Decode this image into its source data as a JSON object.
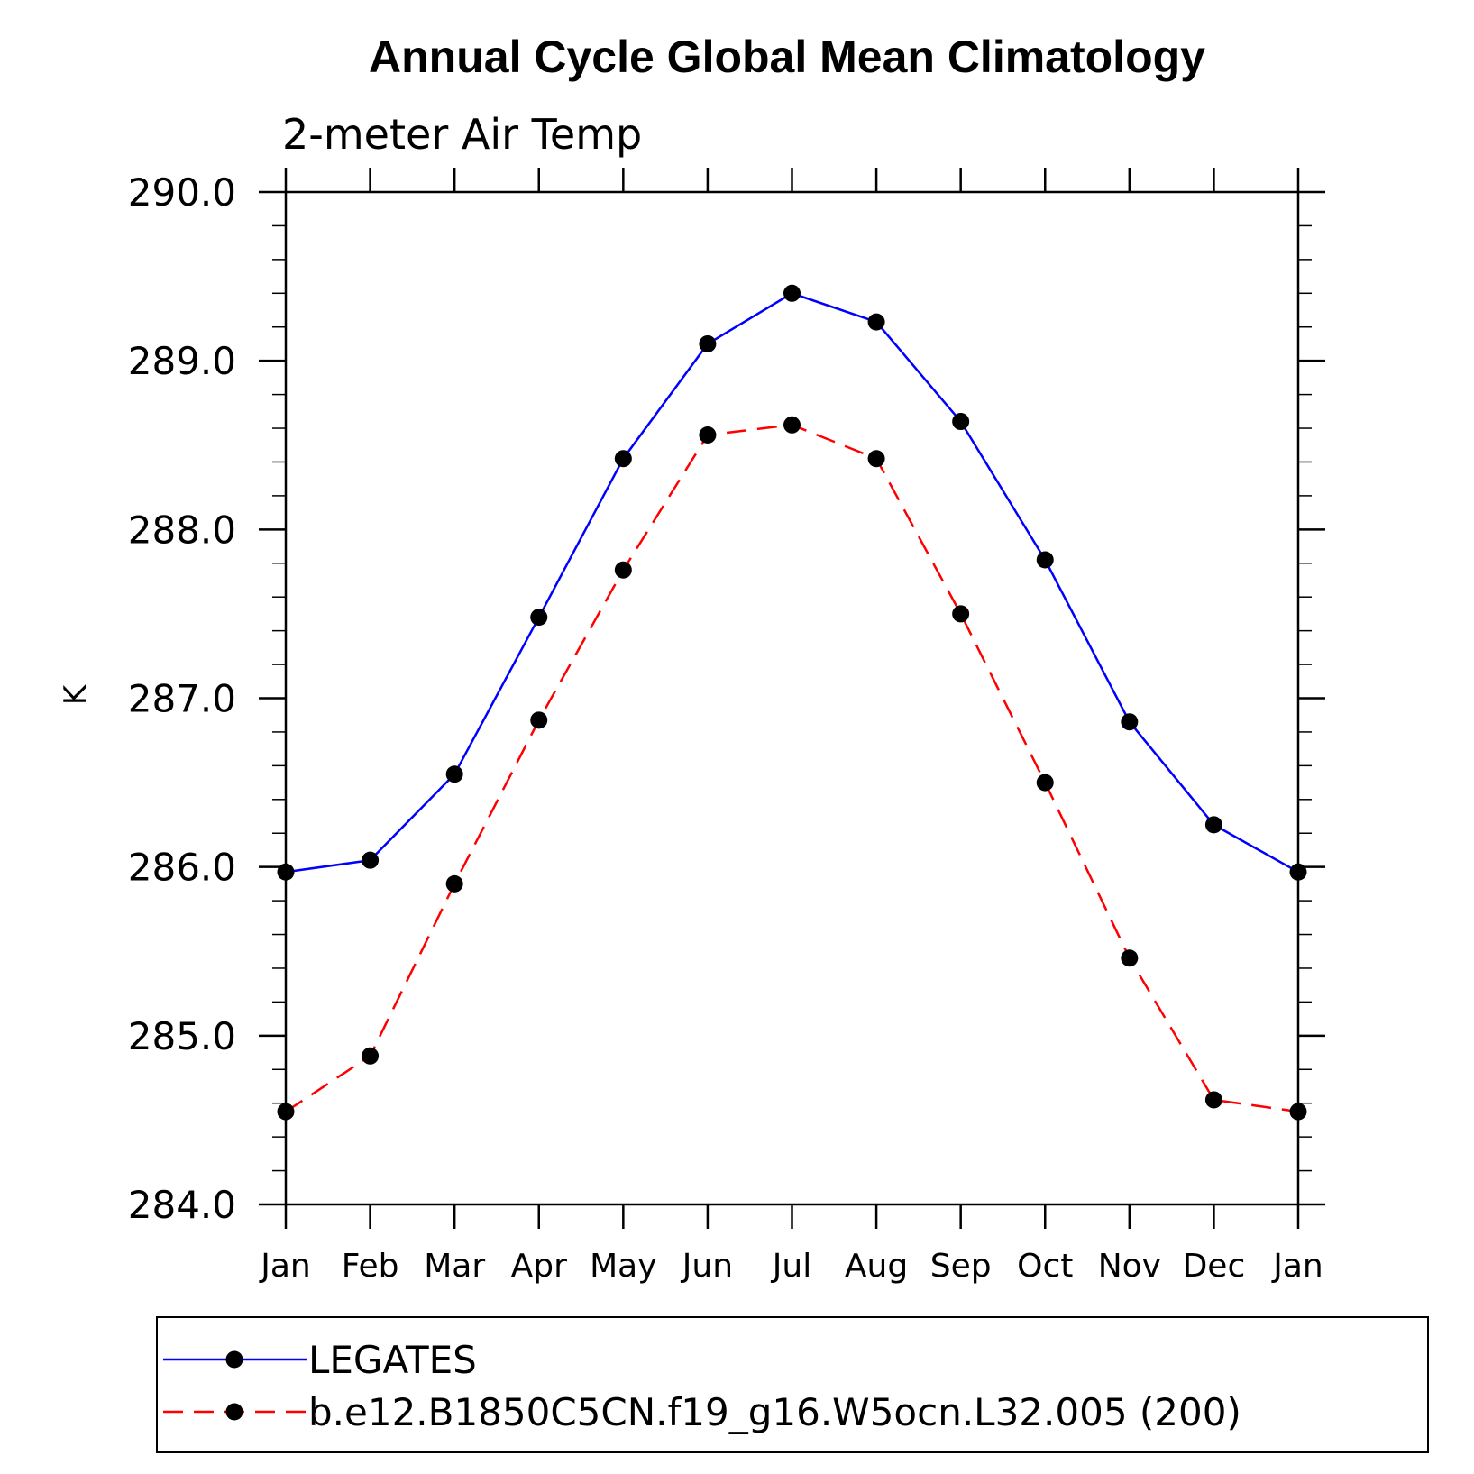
{
  "chart_data": {
    "type": "line",
    "title": "Annual Cycle Global Mean Climatology",
    "subtitle": "2-meter Air Temp",
    "xlabel": "",
    "ylabel": "K",
    "categories": [
      "Jan",
      "Feb",
      "Mar",
      "Apr",
      "May",
      "Jun",
      "Jul",
      "Aug",
      "Sep",
      "Oct",
      "Nov",
      "Dec",
      "Jan"
    ],
    "ylim": [
      284.0,
      290.0
    ],
    "yticks": [
      "284.0",
      "285.0",
      "286.0",
      "287.0",
      "288.0",
      "289.0",
      "290.0"
    ],
    "grid": false,
    "legend_position": "bottom",
    "series": [
      {
        "name": "LEGATES",
        "color": "#0000ff",
        "line_style": "solid",
        "marker": "filled-circle",
        "values": [
          285.97,
          286.04,
          286.55,
          287.48,
          288.42,
          289.1,
          289.4,
          289.23,
          288.64,
          287.82,
          286.86,
          286.25,
          285.97
        ]
      },
      {
        "name": "b.e12.B1850C5CN.f19_g16.W5ocn.L32.005 (200)",
        "color": "#ff0000",
        "line_style": "dashed",
        "marker": "filled-circle",
        "values": [
          284.55,
          284.88,
          285.9,
          286.87,
          287.76,
          288.56,
          288.62,
          288.42,
          287.5,
          286.5,
          285.46,
          284.62,
          284.55
        ]
      }
    ]
  }
}
